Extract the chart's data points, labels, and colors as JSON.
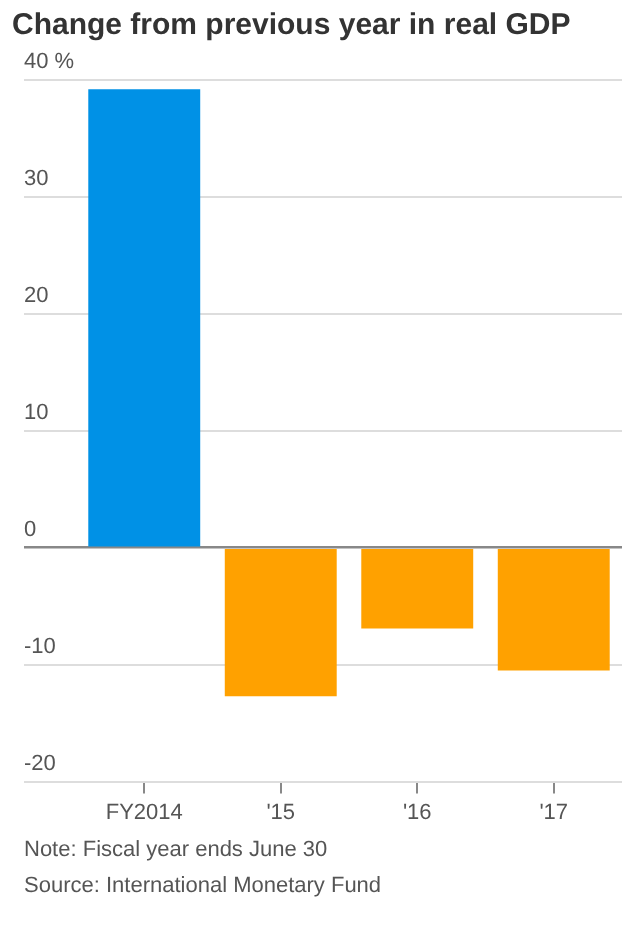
{
  "chart_data": {
    "type": "bar",
    "title": "Change from previous year in real GDP",
    "categories": [
      "FY2014",
      "'15",
      "'16",
      "'17"
    ],
    "values": [
      39.2,
      -12.7,
      -6.9,
      -10.5
    ],
    "colors": [
      "#0091e6",
      "#ffa100",
      "#ffa100",
      "#ffa100"
    ],
    "ylim": [
      -20,
      40
    ],
    "yticks": [
      -20,
      -10,
      0,
      10,
      20,
      30,
      {
        "value": 40,
        "label": "40 %"
      }
    ],
    "grid": "y",
    "legend": false,
    "annotations": [
      "Note: Fiscal year ends June 30",
      "Source: International Monetary Fund"
    ]
  }
}
